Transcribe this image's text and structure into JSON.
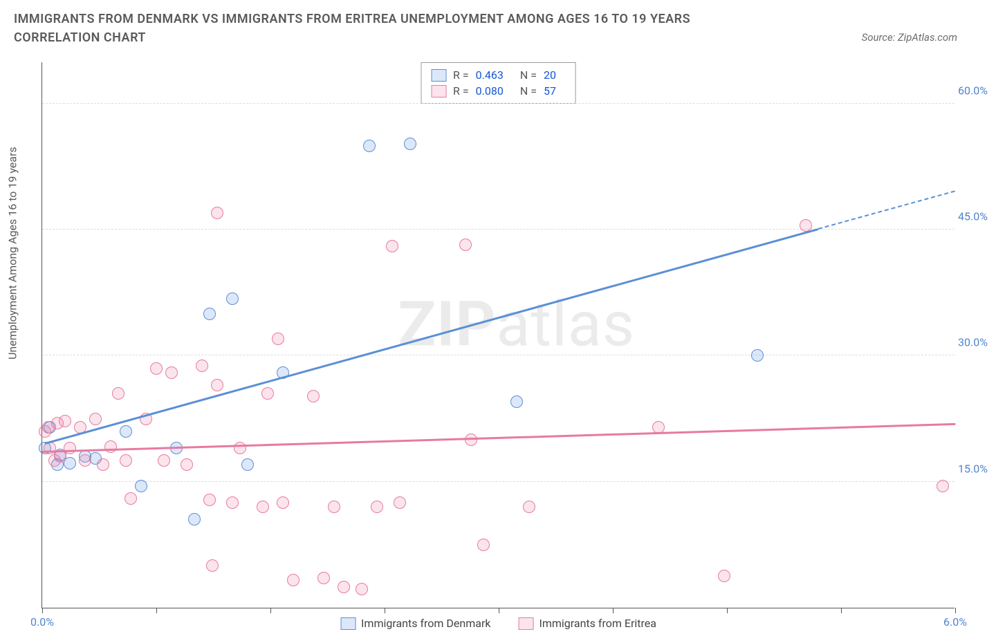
{
  "title": "IMMIGRANTS FROM DENMARK VS IMMIGRANTS FROM ERITREA UNEMPLOYMENT AMONG AGES 16 TO 19 YEARS CORRELATION CHART",
  "source_label": "Source: ZipAtlas.com",
  "ylabel": "Unemployment Among Ages 16 to 19 years",
  "watermark_a": "ZIP",
  "watermark_b": "atlas",
  "chart": {
    "type": "scatter",
    "xlim": [
      0,
      6
    ],
    "ylim": [
      0,
      65
    ],
    "x_ticks": [
      0,
      0.75,
      1.5,
      2.25,
      3.0,
      3.75,
      4.5,
      5.25,
      6.0
    ],
    "x_tick_labels": {
      "0": "0.0%",
      "6": "6.0%"
    },
    "y_grid": [
      15,
      30,
      45,
      60
    ],
    "y_tick_labels": {
      "15": "15.0%",
      "30": "30.0%",
      "45": "45.0%",
      "60": "60.0%"
    },
    "background_color": "#ffffff",
    "grid_color": "#dcdcdc",
    "axis_color": "#555555",
    "marker_radius": 9,
    "marker_stroke": 1.5,
    "series": [
      {
        "key": "denmark",
        "label": "Immigrants from Denmark",
        "fill": "rgba(96,150,227,0.22)",
        "stroke": "#5a8fd6",
        "text_color": "#4e84cf",
        "R": "0.463",
        "N": "20",
        "trend": {
          "x1": 0.02,
          "y1": 19.5,
          "x2": 5.1,
          "y2": 45.0,
          "dash_to_x": 6.0,
          "dash_to_y": 49.5
        },
        "points": [
          [
            0.02,
            19.0
          ],
          [
            0.05,
            21.5
          ],
          [
            0.1,
            17.0
          ],
          [
            0.12,
            18.2
          ],
          [
            0.18,
            17.2
          ],
          [
            0.28,
            18.0
          ],
          [
            0.35,
            17.8
          ],
          [
            0.55,
            21.0
          ],
          [
            0.65,
            14.5
          ],
          [
            0.88,
            19.0
          ],
          [
            1.0,
            10.5
          ],
          [
            1.1,
            35.0
          ],
          [
            1.25,
            36.8
          ],
          [
            1.35,
            17.0
          ],
          [
            1.58,
            28.0
          ],
          [
            2.15,
            55.0
          ],
          [
            2.42,
            55.2
          ],
          [
            3.12,
            24.5
          ],
          [
            4.7,
            30.0
          ]
        ]
      },
      {
        "key": "eritrea",
        "label": "Immigrants from Eritrea",
        "fill": "rgba(235,120,160,0.20)",
        "stroke": "#e77aa0",
        "text_color": "#e46a95",
        "R": "0.080",
        "N": "57",
        "trend": {
          "x1": 0.0,
          "y1": 18.5,
          "x2": 6.0,
          "y2": 21.8
        },
        "points": [
          [
            0.02,
            21.0
          ],
          [
            0.04,
            21.5
          ],
          [
            0.05,
            19.0
          ],
          [
            0.08,
            17.5
          ],
          [
            0.1,
            22.0
          ],
          [
            0.12,
            18.0
          ],
          [
            0.15,
            22.2
          ],
          [
            0.18,
            19.0
          ],
          [
            0.25,
            21.5
          ],
          [
            0.28,
            17.5
          ],
          [
            0.35,
            22.5
          ],
          [
            0.4,
            17.0
          ],
          [
            0.45,
            19.2
          ],
          [
            0.5,
            25.5
          ],
          [
            0.55,
            17.5
          ],
          [
            0.58,
            13.0
          ],
          [
            0.68,
            22.5
          ],
          [
            0.75,
            28.5
          ],
          [
            0.8,
            17.5
          ],
          [
            0.85,
            28.0
          ],
          [
            0.95,
            17.0
          ],
          [
            1.05,
            28.8
          ],
          [
            1.1,
            12.8
          ],
          [
            1.12,
            5.0
          ],
          [
            1.15,
            26.5
          ],
          [
            1.15,
            47.0
          ],
          [
            1.25,
            12.5
          ],
          [
            1.3,
            19.0
          ],
          [
            1.45,
            12.0
          ],
          [
            1.48,
            25.5
          ],
          [
            1.55,
            32.0
          ],
          [
            1.58,
            12.5
          ],
          [
            1.65,
            3.3
          ],
          [
            1.78,
            25.2
          ],
          [
            1.85,
            3.5
          ],
          [
            1.92,
            12.0
          ],
          [
            1.98,
            2.5
          ],
          [
            2.1,
            2.2
          ],
          [
            2.2,
            12.0
          ],
          [
            2.3,
            43.0
          ],
          [
            2.35,
            12.5
          ],
          [
            2.78,
            43.2
          ],
          [
            2.82,
            20.0
          ],
          [
            2.9,
            7.5
          ],
          [
            3.2,
            12.0
          ],
          [
            4.05,
            21.5
          ],
          [
            4.48,
            3.8
          ],
          [
            5.02,
            45.5
          ],
          [
            5.92,
            14.5
          ]
        ]
      }
    ]
  }
}
